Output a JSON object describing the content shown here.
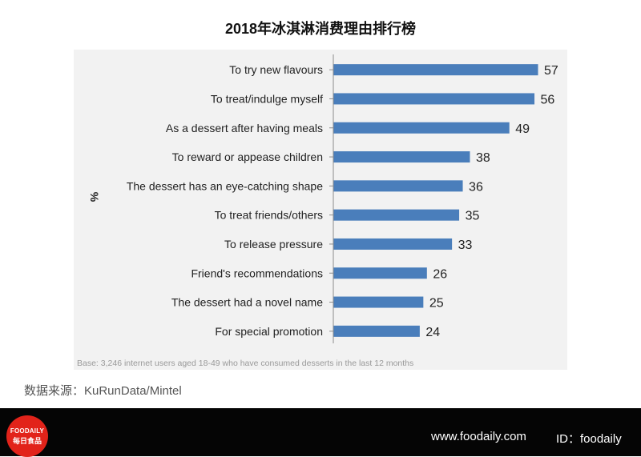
{
  "page": {
    "title": "2018年冰淇淋消费理由排行榜",
    "note": "Base: 3,246 internet users aged 18-49 who have consumed desserts in the last 12 months",
    "source": "数据来源：KuRunData/Mintel",
    "footer": {
      "logo_en": "FOODAILY",
      "logo_cn": "每日食品",
      "site": "www.foodaily.com",
      "account": "ID：foodaily"
    }
  },
  "chart_data": {
    "type": "bar",
    "orientation": "horizontal",
    "title": "2018年冰淇淋消费理由排行榜",
    "ylabel": "%",
    "xlim": [
      0,
      60
    ],
    "grid": false,
    "bar_color": "#4a7ebb",
    "categories": [
      "To try new flavours",
      "To treat/indulge myself",
      "As a dessert after having meals",
      "To reward or appease children",
      "The dessert has an eye-catching shape",
      "To treat friends/others",
      "To release pressure",
      "Friend's recommendations",
      "The dessert had a novel name",
      "For special promotion"
    ],
    "values": [
      57,
      56,
      49,
      38,
      36,
      35,
      33,
      26,
      25,
      24
    ]
  }
}
